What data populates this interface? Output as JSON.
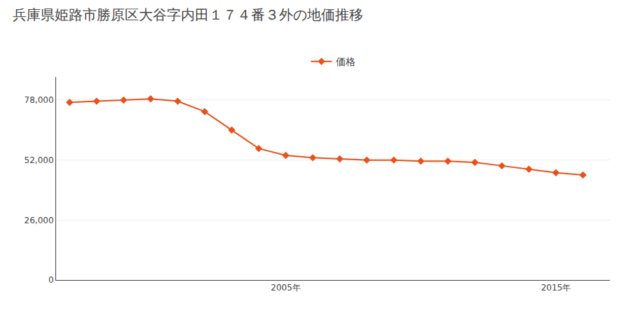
{
  "chart_data": {
    "type": "line",
    "title": "兵庫県姫路市勝原区大谷字内田１７４番３外の地価推移",
    "x": [
      1997,
      1998,
      1999,
      2000,
      2001,
      2002,
      2003,
      2004,
      2005,
      2006,
      2007,
      2008,
      2009,
      2010,
      2011,
      2012,
      2013,
      2014,
      2015,
      2016
    ],
    "series": [
      {
        "name": "価格",
        "color": "#E8511A",
        "marker": "diamond",
        "values": [
          77000,
          77500,
          78000,
          78500,
          77500,
          73000,
          65000,
          57000,
          54000,
          53000,
          52500,
          52000,
          52000,
          51500,
          51500,
          51000,
          49500,
          48000,
          46500,
          45500
        ]
      }
    ],
    "xlim": [
      1996.5,
      2017
    ],
    "xticks": [
      {
        "value": 2005,
        "label": "2005年"
      },
      {
        "value": 2015,
        "label": "2015年"
      }
    ],
    "ylim": [
      0,
      88000
    ],
    "yticks": [
      0,
      {
        "value": 26000,
        "label": "26,000"
      },
      {
        "value": 52000,
        "label": "52,000"
      },
      {
        "value": 78000,
        "label": "78,000"
      }
    ],
    "grid": true,
    "legend": "top"
  }
}
